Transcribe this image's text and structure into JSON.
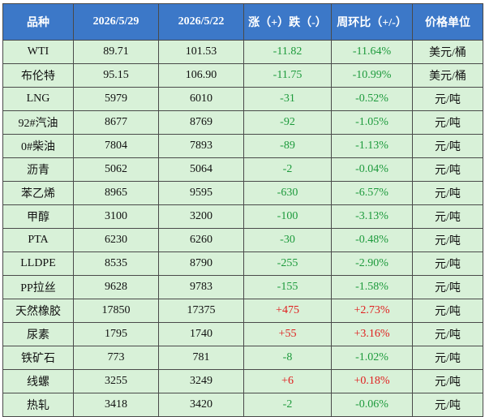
{
  "table": {
    "header": [
      "品种",
      "2026/5/29",
      "2026/5/22",
      "涨（+）跌（-）",
      "周环比（+/-）",
      "价格单位"
    ],
    "rows": [
      [
        "WTI",
        "89.71",
        "101.53",
        "-11.82",
        "-11.64%",
        "美元/桶"
      ],
      [
        "布伦特",
        "95.15",
        "106.90",
        "-11.75",
        "-10.99%",
        "美元/桶"
      ],
      [
        "LNG",
        "5979",
        "6010",
        "-31",
        "-0.52%",
        "元/吨"
      ],
      [
        "92#汽油",
        "8677",
        "8769",
        "-92",
        "-1.05%",
        "元/吨"
      ],
      [
        "0#柴油",
        "7804",
        "7893",
        "-89",
        "-1.13%",
        "元/吨"
      ],
      [
        "沥青",
        "5062",
        "5064",
        "-2",
        "-0.04%",
        "元/吨"
      ],
      [
        "苯乙烯",
        "8965",
        "9595",
        "-630",
        "-6.57%",
        "元/吨"
      ],
      [
        "甲醇",
        "3100",
        "3200",
        "-100",
        "-3.13%",
        "元/吨"
      ],
      [
        "PTA",
        "6230",
        "6260",
        "-30",
        "-0.48%",
        "元/吨"
      ],
      [
        "LLDPE",
        "8535",
        "8790",
        "-255",
        "-2.90%",
        "元/吨"
      ],
      [
        "PP拉丝",
        "9628",
        "9783",
        "-155",
        "-1.58%",
        "元/吨"
      ],
      [
        "天然橡胶",
        "17850",
        "17375",
        "+475",
        "+2.73%",
        "元/吨"
      ],
      [
        "尿素",
        "1795",
        "1740",
        "+55",
        "+3.16%",
        "元/吨"
      ],
      [
        "铁矿石",
        "773",
        "781",
        "-8",
        "-1.02%",
        "元/吨"
      ],
      [
        "线螺",
        "3255",
        "3249",
        "+6",
        "+0.18%",
        "元/吨"
      ],
      [
        "热轧",
        "3418",
        "3420",
        "-2",
        "-0.06%",
        "元/吨"
      ]
    ]
  }
}
